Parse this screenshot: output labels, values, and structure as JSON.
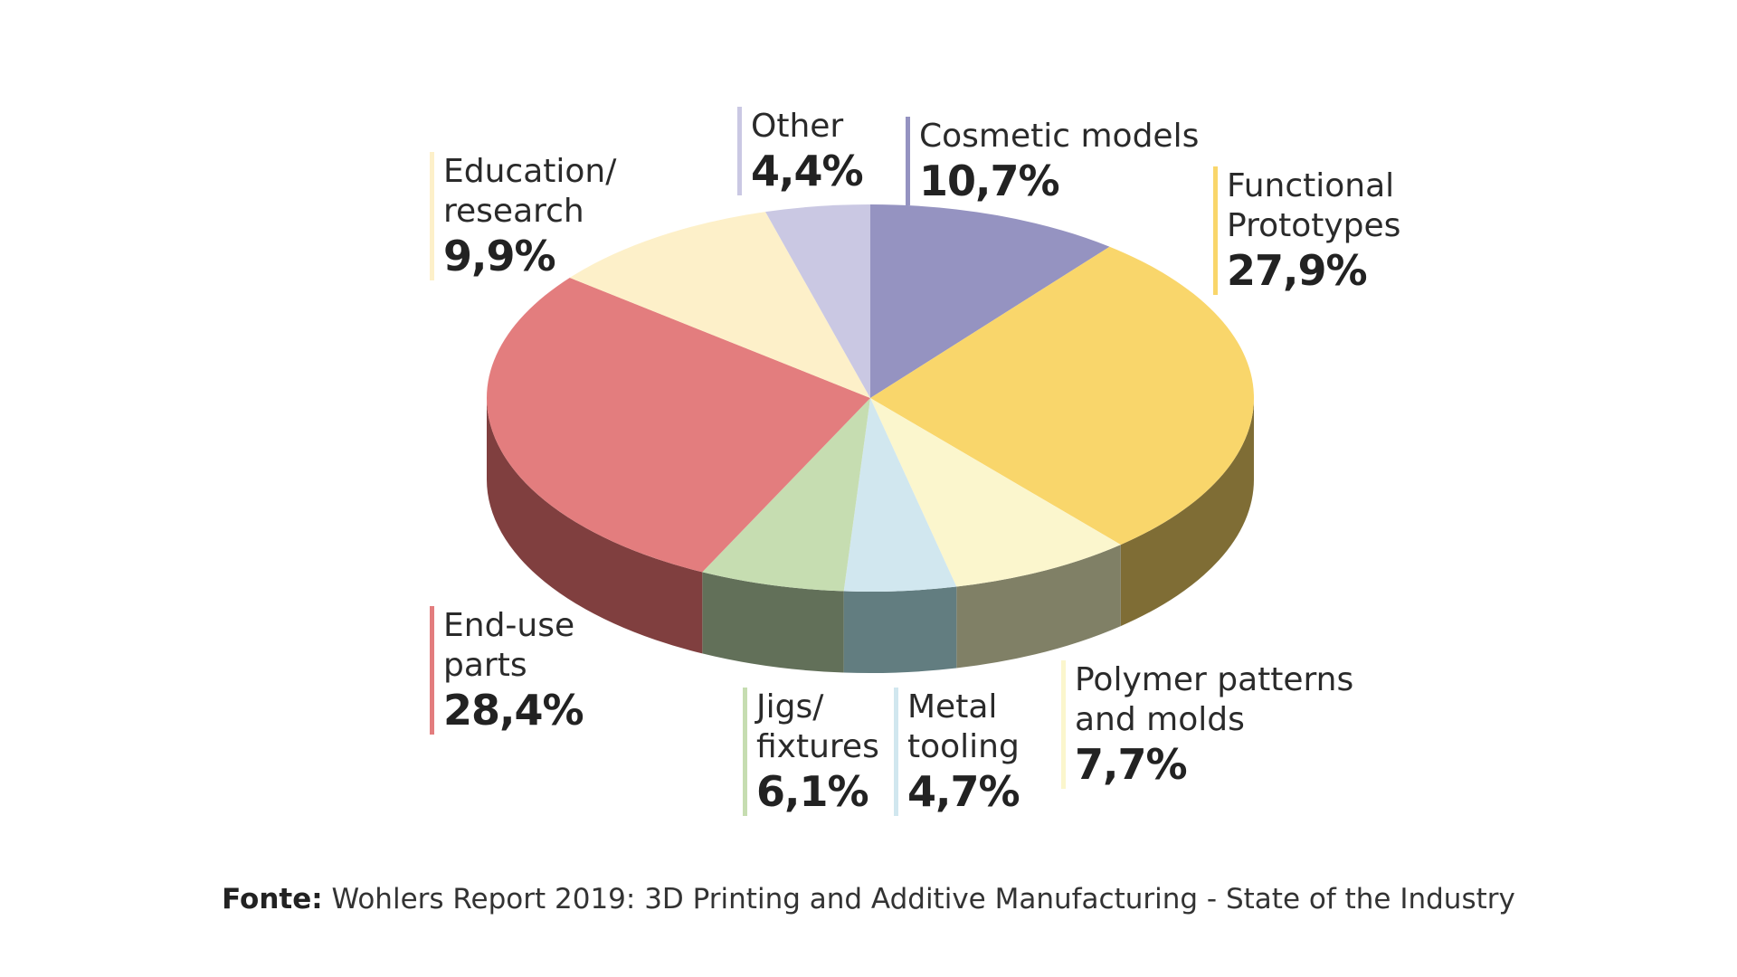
{
  "chart_data": {
    "type": "pie",
    "slices": [
      {
        "label": "Cosmetic models",
        "value_label": "10,7%",
        "value": 10.7,
        "color": "#9593c1",
        "side_color": "#5f5d8a"
      },
      {
        "label": "Functional\nPrototypes",
        "value_label": "27,9%",
        "value": 27.9,
        "color": "#f9d66b",
        "side_color": "#7f6d35"
      },
      {
        "label": "Polymer patterns\nand molds",
        "value_label": "7,7%",
        "value": 7.7,
        "color": "#fbf6cd",
        "side_color": "#808066"
      },
      {
        "label": "Metal\ntooling",
        "value_label": "4,7%",
        "value": 4.7,
        "color": "#d1e7ef",
        "side_color": "#627d80"
      },
      {
        "label": "Jigs/\nfixtures",
        "value_label": "6,1%",
        "value": 6.1,
        "color": "#c6ddb1",
        "side_color": "#627059"
      },
      {
        "label": "End-use\nparts",
        "value_label": "28,4%",
        "value": 28.4,
        "color": "#e37d7e",
        "side_color": "#803f3f"
      },
      {
        "label": "Education/\nresearch",
        "value_label": "9,9%",
        "value": 9.9,
        "color": "#fdf0c9",
        "side_color": "#807966"
      },
      {
        "label": "Other",
        "value_label": "4,4%",
        "value": 4.4,
        "color": "#cac8e3",
        "side_color": "#66657f"
      }
    ]
  },
  "source": {
    "prefix": "Fonte:",
    "text": " Wohlers Report 2019: 3D Printing and Additive Manufacturing - State of the Industry"
  }
}
